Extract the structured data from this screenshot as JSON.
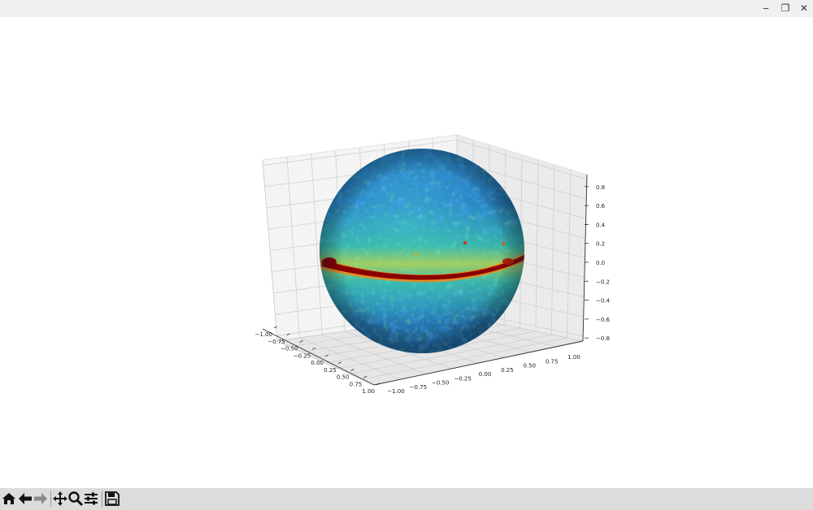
{
  "window": {
    "minimize_glyph": "‒",
    "restore_glyph": "❐",
    "close_glyph": "✕"
  },
  "toolbar": {
    "icons": [
      "home-icon",
      "back-icon",
      "forward-icon",
      "pan-icon",
      "zoom-icon",
      "configure-subplots-icon",
      "save-icon"
    ]
  },
  "chart_data": {
    "type": "surface",
    "title": "",
    "xlabel": "",
    "ylabel": "",
    "zlabel": "",
    "x_ticks": [
      -1.0,
      -0.75,
      -0.5,
      -0.25,
      0.0,
      0.25,
      0.5,
      0.75,
      1.0
    ],
    "y_ticks": [
      -1.0,
      -0.75,
      -0.5,
      -0.25,
      0.0,
      0.25,
      0.5,
      0.75,
      1.0
    ],
    "z_ticks": [
      -0.8,
      -0.6,
      -0.4,
      -0.2,
      0.0,
      0.2,
      0.4,
      0.6,
      0.8
    ],
    "x_tick_labels": [
      "−1.00",
      "−0.75",
      "−0.50",
      "−0.25",
      "0.00",
      "0.25",
      "0.50",
      "0.75",
      "1.00"
    ],
    "y_tick_labels": [
      "−1.00",
      "−0.75",
      "−0.50",
      "−0.25",
      "0.00",
      "0.25",
      "0.50",
      "0.75",
      "1.00"
    ],
    "z_tick_labels": [
      "−0.8",
      "−0.6",
      "−0.4",
      "−0.2",
      "0.0",
      "0.2",
      "0.4",
      "0.6",
      "0.8"
    ],
    "xlim": [
      -1.0,
      1.0
    ],
    "ylim": [
      -1.0,
      1.0
    ],
    "zlim": [
      -0.85,
      0.85
    ],
    "grid": true,
    "surface": "unit sphere textured with a sky map",
    "colormap": "jet",
    "colors": {
      "background_field": "#2f86d8",
      "mid_field": "#36c3b7",
      "band": "#8b0000",
      "band_edge": "#f08a1c"
    }
  }
}
